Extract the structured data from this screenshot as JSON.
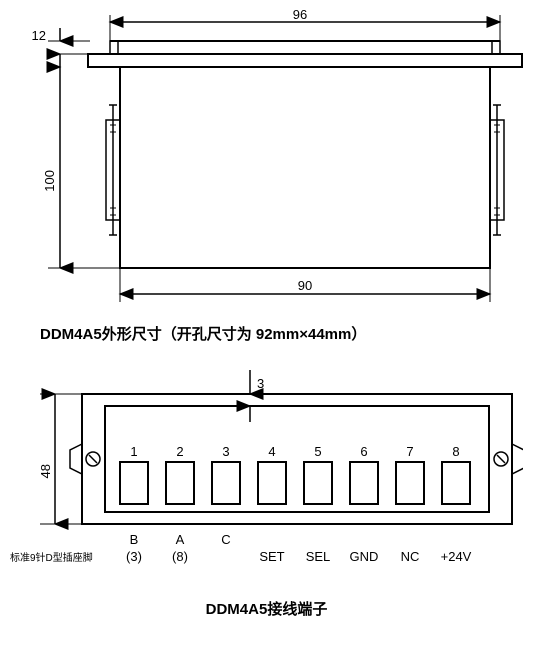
{
  "top_diagram": {
    "dim_top": "96",
    "dim_left_small": "12",
    "dim_left_large": "100",
    "dim_bottom": "90",
    "stroke": "#000000",
    "fill": "#ffffff",
    "line_width_outer": 2,
    "line_width_inner": 1
  },
  "caption1": {
    "model": "DDM4A5",
    "text1": "外形尺寸（开孔尺寸为",
    "dims": "92mm×44mm",
    "text2": "）"
  },
  "bottom_diagram": {
    "dim_left": "48",
    "dim_top_small": "3",
    "terminals": [
      "1",
      "2",
      "3",
      "4",
      "5",
      "6",
      "7",
      "8"
    ],
    "labels_row1": [
      "B",
      "A",
      "C",
      "",
      "",
      "",
      "",
      ""
    ],
    "labels_row2": [
      "(3)",
      "(8)",
      "",
      "SET",
      "SEL",
      "GND",
      "NC",
      "+24V"
    ],
    "side_label": "标准9针D型插座脚",
    "stroke": "#000000",
    "fill": "#ffffff"
  },
  "caption2": {
    "model": "DDM4A5",
    "text": "接线端子"
  }
}
